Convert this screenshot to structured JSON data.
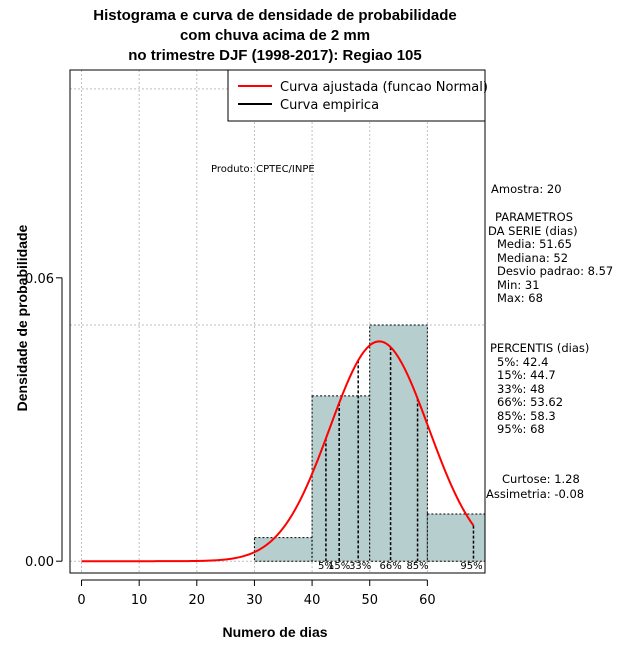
{
  "chart_data": {
    "type": "histogram",
    "title_lines": [
      "Histograma e curva de densidade de probabilidade",
      "com chuva acima de 2 mm",
      "no trimestre DJF (1998-2017): Regiao 105"
    ],
    "xlabel": "Numero de dias",
    "ylabel": "Densidade de probabilidade",
    "xlim": [
      -2,
      70
    ],
    "ylim": [
      -0.0025,
      0.104
    ],
    "x_ticks": [
      0,
      10,
      20,
      30,
      40,
      50,
      60
    ],
    "y_ticks": [
      0.0,
      0.06
    ],
    "y_tick_labels": [
      "0.00",
      "0.06"
    ],
    "grid": true,
    "bins": [
      {
        "from": 30,
        "to": 40,
        "density": 0.005
      },
      {
        "from": 40,
        "to": 50,
        "density": 0.035
      },
      {
        "from": 50,
        "to": 60,
        "density": 0.05
      },
      {
        "from": 60,
        "to": 70,
        "density": 0.01
      }
    ],
    "normal_curve": {
      "mean": 51.65,
      "sd": 8.57,
      "x_from": 0,
      "x_to": 68,
      "color": "#ff0000"
    },
    "percentiles": [
      {
        "label": "5%",
        "value": 42.4
      },
      {
        "label": "15%",
        "value": 44.7
      },
      {
        "label": "33%",
        "value": 48
      },
      {
        "label": "66%",
        "value": 53.62
      },
      {
        "label": "85%",
        "value": 58.3
      },
      {
        "label": "95%",
        "value": 68
      }
    ],
    "legend": [
      {
        "label": "Curva ajustada (funcao Normal)",
        "color": "#ff0000"
      },
      {
        "label": "Curva empirica",
        "color": "#000000"
      }
    ],
    "annotation": "Produto: CPTEC/INPE",
    "bar_color": "#b6cece"
  },
  "stats": {
    "amostra": "Amostra: 20",
    "param_title_1": "PARAMETROS",
    "param_title_2": "DA SERIE (dias)",
    "media": "Media: 51.65",
    "mediana": "Mediana: 52",
    "desvio": "Desvio padrao: 8.57",
    "min": "Min: 31",
    "max": "Max: 68",
    "perc_title": "PERCENTIS (dias)",
    "p5": "5%: 42.4",
    "p15": "15%: 44.7",
    "p33": "33%: 48",
    "p66": "66%: 53.62",
    "p85": "85%: 58.3",
    "p95": "95%: 68",
    "curtose": "Curtose: 1.28",
    "assimetria": "Assimetria: -0.08"
  }
}
